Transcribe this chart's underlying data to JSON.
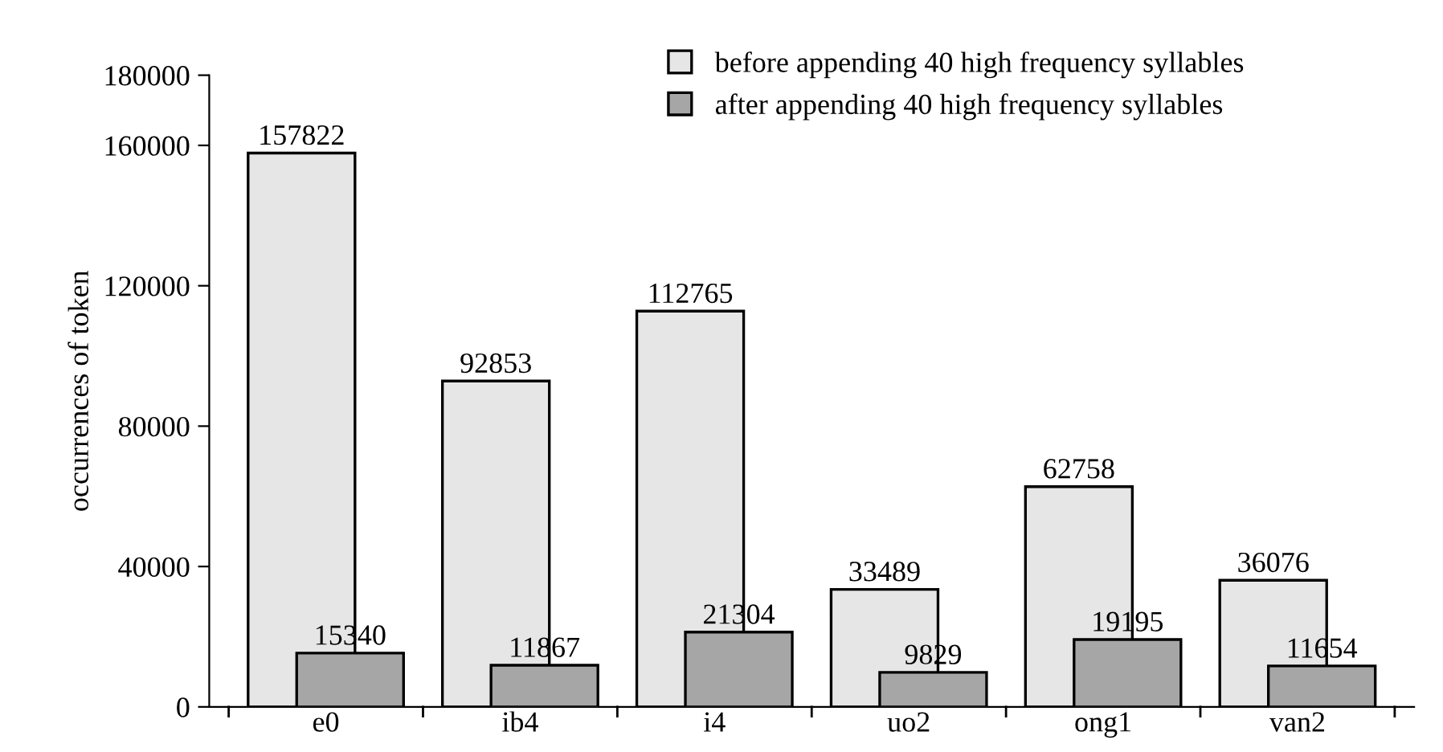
{
  "chart_data": {
    "type": "bar",
    "ylabel": "occurrences of token",
    "categories": [
      "e0",
      "ib4",
      "i4",
      "uo2",
      "ong1",
      "van2"
    ],
    "series": [
      {
        "name": "before appending 40 high frequency syllables",
        "color": "#e6e6e6",
        "values": [
          157822,
          92853,
          112765,
          33489,
          62758,
          36076
        ]
      },
      {
        "name": "after appending 40 high frequency syllables",
        "color": "#a6a6a6",
        "values": [
          15340,
          11867,
          21304,
          9829,
          19195,
          11654
        ]
      }
    ],
    "ylim": [
      0,
      180000
    ],
    "yticks": [
      0,
      40000,
      80000,
      120000,
      160000,
      180000
    ],
    "data_labels": true,
    "legend": "top",
    "grid": false
  }
}
